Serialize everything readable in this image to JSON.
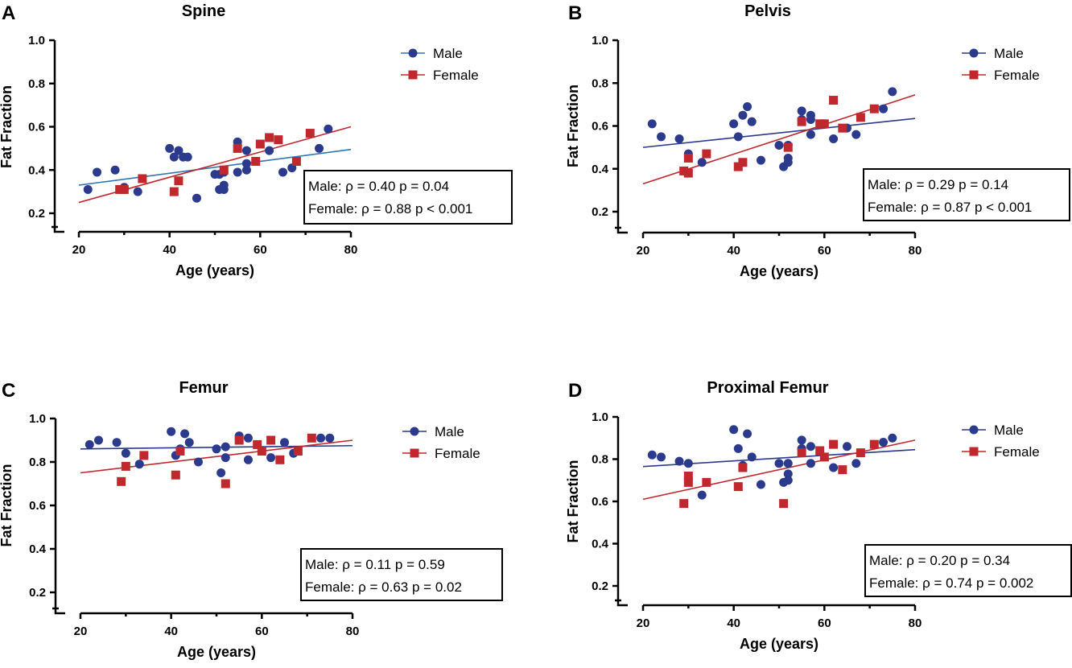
{
  "chart_data": [
    {
      "type": "scatter",
      "panel": "A",
      "title": "Spine",
      "xlabel": "Age (years)",
      "ylabel": "Fat Fraction",
      "xlim": [
        20,
        80
      ],
      "ylim": [
        0.2,
        1.0
      ],
      "xticks": [
        "20",
        "40",
        "60",
        "80"
      ],
      "yticks": [
        "0.2",
        "0.4",
        "0.6",
        "0.8",
        "1.0"
      ],
      "legend": [
        "Male",
        "Female"
      ],
      "stats": [
        "Male: ρ = 0.40 p = 0.04",
        "Female: ρ = 0.88 p < 0.001"
      ],
      "series": [
        {
          "name": "Male",
          "color": "#2b3a8c",
          "marker": "circle",
          "points": [
            [
              22,
              0.31
            ],
            [
              24,
              0.39
            ],
            [
              28,
              0.4
            ],
            [
              30,
              0.31
            ],
            [
              30,
              0.32
            ],
            [
              33,
              0.3
            ],
            [
              40,
              0.5
            ],
            [
              41,
              0.46
            ],
            [
              42,
              0.49
            ],
            [
              43,
              0.46
            ],
            [
              44,
              0.46
            ],
            [
              46,
              0.27
            ],
            [
              50,
              0.38
            ],
            [
              51,
              0.31
            ],
            [
              51,
              0.38
            ],
            [
              52,
              0.31
            ],
            [
              52,
              0.33
            ],
            [
              52,
              0.39
            ],
            [
              55,
              0.39
            ],
            [
              55,
              0.53
            ],
            [
              57,
              0.43
            ],
            [
              57,
              0.4
            ],
            [
              57,
              0.49
            ],
            [
              62,
              0.49
            ],
            [
              65,
              0.39
            ],
            [
              67,
              0.41
            ],
            [
              73,
              0.5
            ],
            [
              75,
              0.59
            ]
          ],
          "fit": [
            [
              20,
              0.33
            ],
            [
              80,
              0.495
            ]
          ],
          "fit_color": "#2f76b3"
        },
        {
          "name": "Female",
          "color": "#c0282d",
          "marker": "square",
          "points": [
            [
              29,
              0.31
            ],
            [
              30,
              0.31
            ],
            [
              34,
              0.36
            ],
            [
              41,
              0.3
            ],
            [
              42,
              0.35
            ],
            [
              52,
              0.4
            ],
            [
              55,
              0.5
            ],
            [
              59,
              0.44
            ],
            [
              60,
              0.52
            ],
            [
              62,
              0.55
            ],
            [
              64,
              0.54
            ],
            [
              68,
              0.44
            ],
            [
              71,
              0.57
            ]
          ],
          "fit": [
            [
              20,
              0.25
            ],
            [
              80,
              0.6
            ]
          ],
          "fit_color": "#c0282d"
        }
      ]
    },
    {
      "type": "scatter",
      "panel": "B",
      "title": "Pelvis",
      "xlabel": "Age (years)",
      "ylabel": "Fat Fraction",
      "xlim": [
        20,
        80
      ],
      "ylim": [
        0.2,
        1.0
      ],
      "xticks": [
        "20",
        "40",
        "60",
        "80"
      ],
      "yticks": [
        "0.2",
        "0.4",
        "0.6",
        "0.8",
        "1.0"
      ],
      "legend": [
        "Male",
        "Female"
      ],
      "stats": [
        "Male: ρ = 0.29 p = 0.14",
        "Female: ρ = 0.87 p < 0.001"
      ],
      "series": [
        {
          "name": "Male",
          "color": "#2b3a8c",
          "marker": "circle",
          "points": [
            [
              22,
              0.61
            ],
            [
              24,
              0.55
            ],
            [
              28,
              0.54
            ],
            [
              30,
              0.47
            ],
            [
              33,
              0.43
            ],
            [
              40,
              0.61
            ],
            [
              41,
              0.55
            ],
            [
              42,
              0.65
            ],
            [
              43,
              0.69
            ],
            [
              44,
              0.62
            ],
            [
              46,
              0.44
            ],
            [
              50,
              0.51
            ],
            [
              51,
              0.41
            ],
            [
              52,
              0.43
            ],
            [
              52,
              0.45
            ],
            [
              52,
              0.51
            ],
            [
              55,
              0.67
            ],
            [
              55,
              0.63
            ],
            [
              57,
              0.65
            ],
            [
              57,
              0.63
            ],
            [
              57,
              0.56
            ],
            [
              62,
              0.54
            ],
            [
              65,
              0.59
            ],
            [
              67,
              0.56
            ],
            [
              73,
              0.68
            ],
            [
              75,
              0.76
            ]
          ],
          "fit": [
            [
              20,
              0.5
            ],
            [
              80,
              0.635
            ]
          ],
          "fit_color": "#2b3a8c"
        },
        {
          "name": "Female",
          "color": "#c0282d",
          "marker": "square",
          "points": [
            [
              29,
              0.39
            ],
            [
              30,
              0.38
            ],
            [
              30,
              0.45
            ],
            [
              34,
              0.47
            ],
            [
              41,
              0.41
            ],
            [
              42,
              0.43
            ],
            [
              52,
              0.5
            ],
            [
              55,
              0.62
            ],
            [
              59,
              0.61
            ],
            [
              60,
              0.61
            ],
            [
              62,
              0.72
            ],
            [
              64,
              0.59
            ],
            [
              68,
              0.64
            ],
            [
              71,
              0.68
            ]
          ],
          "fit": [
            [
              20,
              0.33
            ],
            [
              80,
              0.745
            ]
          ],
          "fit_color": "#c0282d"
        }
      ]
    },
    {
      "type": "scatter",
      "panel": "C",
      "title": "Femur",
      "xlabel": "Age (years)",
      "ylabel": "Fat Fraction",
      "xlim": [
        20,
        80
      ],
      "ylim": [
        0.2,
        1.0
      ],
      "xticks": [
        "20",
        "40",
        "60",
        "80"
      ],
      "yticks": [
        "0.2",
        "0.4",
        "0.6",
        "0.8",
        "1.0"
      ],
      "legend": [
        "Male",
        "Female"
      ],
      "stats": [
        "Male: ρ = 0.11 p = 0.59",
        "Female: ρ = 0.63 p = 0.02"
      ],
      "series": [
        {
          "name": "Male",
          "color": "#2b3a8c",
          "marker": "circle",
          "points": [
            [
              22,
              0.88
            ],
            [
              24,
              0.9
            ],
            [
              28,
              0.89
            ],
            [
              30,
              0.84
            ],
            [
              33,
              0.79
            ],
            [
              40,
              0.94
            ],
            [
              41,
              0.83
            ],
            [
              42,
              0.86
            ],
            [
              43,
              0.93
            ],
            [
              44,
              0.89
            ],
            [
              46,
              0.8
            ],
            [
              50,
              0.86
            ],
            [
              51,
              0.75
            ],
            [
              52,
              0.87
            ],
            [
              52,
              0.82
            ],
            [
              55,
              0.92
            ],
            [
              55,
              0.91
            ],
            [
              57,
              0.91
            ],
            [
              57,
              0.81
            ],
            [
              62,
              0.82
            ],
            [
              65,
              0.89
            ],
            [
              67,
              0.84
            ],
            [
              73,
              0.91
            ],
            [
              75,
              0.91
            ]
          ],
          "fit": [
            [
              20,
              0.86
            ],
            [
              80,
              0.875
            ]
          ],
          "fit_color": "#2b3a8c"
        },
        {
          "name": "Female",
          "color": "#c0282d",
          "marker": "square",
          "points": [
            [
              29,
              0.71
            ],
            [
              30,
              0.78
            ],
            [
              34,
              0.83
            ],
            [
              41,
              0.74
            ],
            [
              42,
              0.85
            ],
            [
              52,
              0.7
            ],
            [
              55,
              0.9
            ],
            [
              59,
              0.88
            ],
            [
              60,
              0.85
            ],
            [
              62,
              0.9
            ],
            [
              64,
              0.81
            ],
            [
              68,
              0.85
            ],
            [
              71,
              0.91
            ]
          ],
          "fit": [
            [
              20,
              0.75
            ],
            [
              80,
              0.9
            ]
          ],
          "fit_color": "#c0282d"
        }
      ]
    },
    {
      "type": "scatter",
      "panel": "D",
      "title": "Proximal Femur",
      "xlabel": "Age (years)",
      "ylabel": "Fat  Fraction",
      "xlim": [
        20,
        80
      ],
      "ylim": [
        0.2,
        1.0
      ],
      "xticks": [
        "20",
        "40",
        "60",
        "80"
      ],
      "yticks": [
        "0.2",
        "0.4",
        "0.6",
        "0.8",
        "1.0"
      ],
      "legend": [
        "Male",
        "Female"
      ],
      "stats": [
        "Male: ρ = 0.20 p = 0.34",
        "Female: ρ = 0.74 p = 0.002"
      ],
      "series": [
        {
          "name": "Male",
          "color": "#2b3a8c",
          "marker": "circle",
          "points": [
            [
              22,
              0.82
            ],
            [
              24,
              0.81
            ],
            [
              28,
              0.79
            ],
            [
              30,
              0.78
            ],
            [
              33,
              0.63
            ],
            [
              40,
              0.94
            ],
            [
              41,
              0.85
            ],
            [
              42,
              0.77
            ],
            [
              43,
              0.92
            ],
            [
              44,
              0.81
            ],
            [
              46,
              0.68
            ],
            [
              50,
              0.78
            ],
            [
              51,
              0.69
            ],
            [
              52,
              0.78
            ],
            [
              52,
              0.73
            ],
            [
              52,
              0.7
            ],
            [
              55,
              0.89
            ],
            [
              55,
              0.85
            ],
            [
              57,
              0.86
            ],
            [
              57,
              0.78
            ],
            [
              62,
              0.76
            ],
            [
              65,
              0.86
            ],
            [
              67,
              0.78
            ],
            [
              73,
              0.88
            ],
            [
              75,
              0.9
            ]
          ],
          "fit": [
            [
              20,
              0.765
            ],
            [
              80,
              0.845
            ]
          ],
          "fit_color": "#2b3a8c"
        },
        {
          "name": "Female",
          "color": "#c0282d",
          "marker": "square",
          "points": [
            [
              29,
              0.59
            ],
            [
              30,
              0.69
            ],
            [
              30,
              0.72
            ],
            [
              34,
              0.69
            ],
            [
              41,
              0.67
            ],
            [
              42,
              0.76
            ],
            [
              51,
              0.59
            ],
            [
              55,
              0.83
            ],
            [
              59,
              0.84
            ],
            [
              60,
              0.81
            ],
            [
              62,
              0.87
            ],
            [
              64,
              0.75
            ],
            [
              68,
              0.83
            ],
            [
              71,
              0.87
            ]
          ],
          "fit": [
            [
              20,
              0.61
            ],
            [
              80,
              0.89
            ]
          ],
          "fit_color": "#c0282d"
        }
      ]
    }
  ]
}
